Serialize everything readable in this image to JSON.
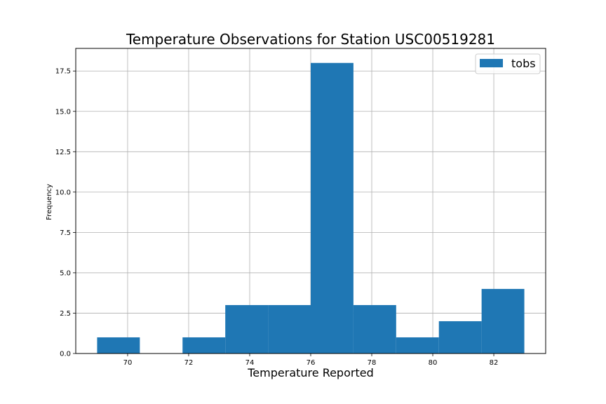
{
  "chart_data": {
    "type": "bar",
    "title": "Temperature Observations for Station USC00519281",
    "xlabel": "Temperature Reported",
    "ylabel": "Frequency",
    "xlim": [
      68.3,
      83.7
    ],
    "ylim": [
      0,
      18.9
    ],
    "x_ticks": [
      70,
      72,
      74,
      76,
      78,
      80,
      82
    ],
    "y_ticks": [
      0.0,
      2.5,
      5.0,
      7.5,
      10.0,
      12.5,
      15.0,
      17.5
    ],
    "y_tick_labels": [
      "0.0",
      "2.5",
      "5.0",
      "7.5",
      "10.0",
      "12.5",
      "15.0",
      "17.5"
    ],
    "grid": true,
    "legend": "upper right",
    "series": [
      {
        "name": "tobs",
        "color": "#1f77b4",
        "bins": [
          {
            "start": 69.0,
            "end": 70.4,
            "count": 1
          },
          {
            "start": 70.4,
            "end": 71.8,
            "count": 0
          },
          {
            "start": 71.8,
            "end": 73.2,
            "count": 1
          },
          {
            "start": 73.2,
            "end": 74.6,
            "count": 3
          },
          {
            "start": 74.6,
            "end": 76.0,
            "count": 3
          },
          {
            "start": 76.0,
            "end": 77.4,
            "count": 18
          },
          {
            "start": 77.4,
            "end": 78.8,
            "count": 3
          },
          {
            "start": 78.8,
            "end": 80.2,
            "count": 1
          },
          {
            "start": 80.2,
            "end": 81.6,
            "count": 2
          },
          {
            "start": 81.6,
            "end": 83.0,
            "count": 4
          }
        ]
      }
    ]
  }
}
